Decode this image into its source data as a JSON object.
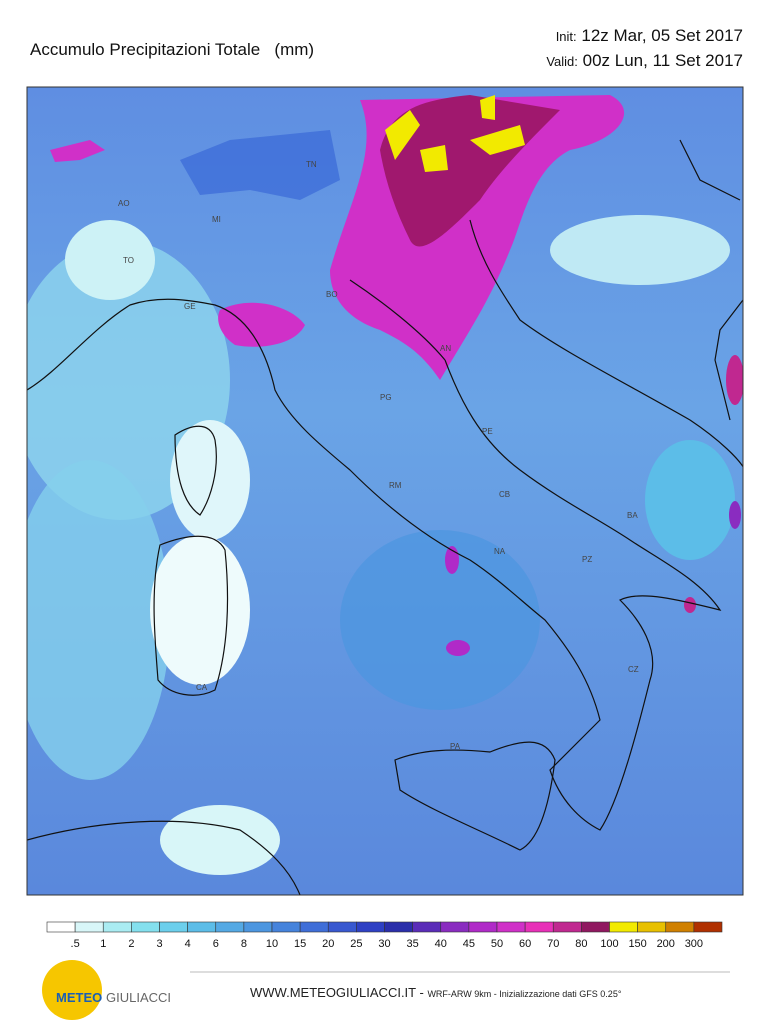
{
  "header": {
    "title": "Accumulo Precipitazioni Totale   (mm)",
    "init_label": "Init:",
    "init": "12z Mar, 05 Set 2017",
    "valid_label": "Valid:",
    "valid": "00z Lun, 11 Set 2017"
  },
  "cities": [
    "AO",
    "MI",
    "TN",
    "TO",
    "GE",
    "BO",
    "AN",
    "PG",
    "PE",
    "RM",
    "CB",
    "BA",
    "NA",
    "PZ",
    "CA",
    "CZ",
    "PA"
  ],
  "colorbar": {
    "colors": [
      "#ffffff",
      "#d8f6f8",
      "#aaecf2",
      "#84e0ee",
      "#6ccfec",
      "#5cbde8",
      "#54a9e4",
      "#4c96e0",
      "#4583dc",
      "#3f6ed8",
      "#3858d0",
      "#2e40c4",
      "#2a2eaa",
      "#5a2cb8",
      "#8a2cc0",
      "#b02ac8",
      "#d030c8",
      "#e830b8",
      "#c02890",
      "#901860",
      "#f2ea00",
      "#e8c000",
      "#d08000",
      "#b03000"
    ],
    "labels": [
      ".5",
      "1",
      "2",
      "3",
      "4",
      "6",
      "8",
      "10",
      "15",
      "20",
      "25",
      "30",
      "35",
      "40",
      "45",
      "50",
      "60",
      "70",
      "80",
      "100",
      "150",
      "200",
      "300"
    ]
  },
  "footer": {
    "site": "WWW.METEOGIULIACCI.IT -",
    "note": "WRF-ARW 9km - Inizializzazione dati GFS 0.25°"
  },
  "logo": {
    "left": "METEO",
    "right": "GIULIACCI"
  }
}
